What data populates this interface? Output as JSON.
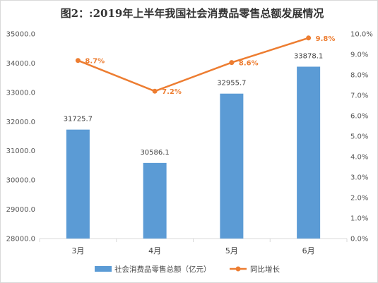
{
  "chart_data": {
    "type": "bar",
    "title": "图2：:2019年上半年我国社会消费品零售总额发展情况",
    "categories": [
      "3月",
      "4月",
      "5月",
      "6月"
    ],
    "series": [
      {
        "name": "社会消费品零售总额（亿元）",
        "type": "bar",
        "axis": "left",
        "color": "#5b9bd5",
        "values": [
          31725.7,
          30586.1,
          32955.7,
          33878.1
        ],
        "labels": [
          "31725.7",
          "30586.1",
          "32955.7",
          "33878.1"
        ]
      },
      {
        "name": "同比增长",
        "type": "line",
        "axis": "right",
        "color": "#ed7d31",
        "values": [
          8.7,
          7.2,
          8.6,
          9.8
        ],
        "labels": [
          "8.7%",
          "7.2%",
          "8.6%",
          "9.8%"
        ]
      }
    ],
    "y_left": {
      "min": 28000,
      "max": 35000,
      "ticks": [
        "28000.0",
        "29000.0",
        "30000.0",
        "31000.0",
        "32000.0",
        "33000.0",
        "34000.0",
        "35000.0"
      ]
    },
    "y_right": {
      "min": 0,
      "max": 10,
      "ticks": [
        "0.0%",
        "1.0%",
        "2.0%",
        "3.0%",
        "4.0%",
        "5.0%",
        "6.0%",
        "7.0%",
        "8.0%",
        "9.0%",
        "10.0%"
      ]
    },
    "grid": false,
    "legend_position": "bottom"
  }
}
